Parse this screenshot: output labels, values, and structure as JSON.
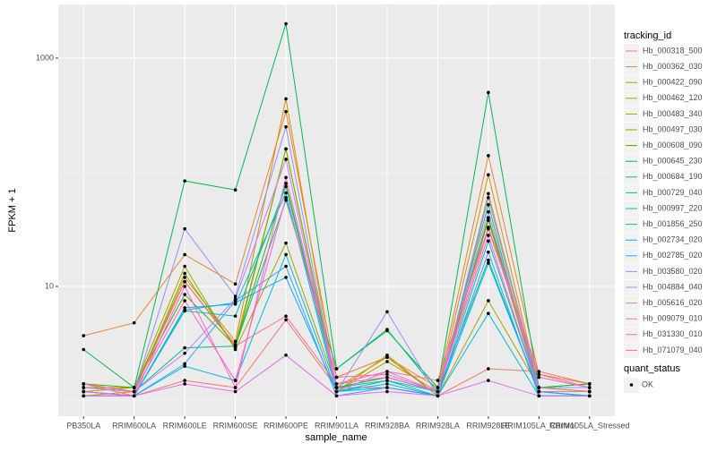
{
  "chart_data": {
    "type": "line",
    "log_y": true,
    "grid": true,
    "x_label": "sample_name",
    "y_label": "FPKM + 1",
    "legend_title": "tracking_id",
    "legend_position": "right",
    "point_legend_title": "quant_status",
    "point_legend_label": "OK",
    "point_color": "#000000",
    "ylim": [
      0.73,
      2950
    ],
    "yticks": [
      10,
      1000
    ],
    "categories": [
      "PB350LA",
      "RRIM600LA",
      "RRIM600LE",
      "RRIM600SE",
      "RRIM600PE",
      "RRIM901LA",
      "RRIM928BA",
      "RRIM928LA",
      "RRIM928LE",
      "RRIM105LA_Control",
      "RRIM105LA_Stressed"
    ],
    "series": [
      {
        "name": "Hb_000318_500",
        "color": "#F8766D",
        "values": [
          1.4,
          1.1,
          1.5,
          1.3,
          5.1,
          1.3,
          1.3,
          1.1,
          1.9,
          1.8,
          1.4
        ]
      },
      {
        "name": "Hb_000362_030",
        "color": "#EA8331",
        "values": [
          3.7,
          4.8,
          19,
          10.5,
          340,
          1.6,
          2.4,
          1.3,
          140,
          1.7,
          1.4
        ]
      },
      {
        "name": "Hb_000422_090",
        "color": "#D89000",
        "values": [
          1.1,
          1.2,
          12,
          3.3,
          440,
          1.2,
          2.2,
          1.2,
          95,
          1.3,
          1.2
        ]
      },
      {
        "name": "Hb_000462_120",
        "color": "#C09B00",
        "values": [
          1.2,
          1.3,
          11,
          3.1,
          160,
          1.2,
          2.5,
          1.1,
          60,
          1.2,
          1.1
        ]
      },
      {
        "name": "Hb_000483_340",
        "color": "#A3A500",
        "values": [
          1.3,
          1.3,
          15,
          2.8,
          24,
          1.3,
          2.4,
          1.1,
          7.5,
          1.3,
          1.2
        ]
      },
      {
        "name": "Hb_000497_030",
        "color": "#7CAE00",
        "values": [
          1.3,
          1.2,
          13,
          2.9,
          160,
          1.3,
          1.6,
          1.2,
          38,
          1.2,
          1.1
        ]
      },
      {
        "name": "Hb_000608_090",
        "color": "#39B600",
        "values": [
          1.4,
          1.3,
          8.5,
          3.0,
          80,
          1.3,
          1.6,
          1.2,
          40,
          1.3,
          1.4
        ]
      },
      {
        "name": "Hb_000645_230",
        "color": "#00BB4E",
        "values": [
          2.8,
          1.3,
          84,
          70,
          2000,
          1.9,
          4.1,
          1.3,
          500,
          1.3,
          1.4
        ]
      },
      {
        "name": "Hb_000684_190",
        "color": "#00BF7D",
        "values": [
          1.3,
          1.2,
          2.9,
          3.0,
          57,
          1.9,
          4.2,
          1.2,
          17,
          1.2,
          1.2
        ]
      },
      {
        "name": "Hb_000729_040",
        "color": "#00C1A3",
        "values": [
          1.2,
          1.1,
          6.1,
          5.5,
          75,
          1.3,
          1.5,
          1.1,
          25,
          1.2,
          1.1
        ]
      },
      {
        "name": "Hb_000997_220",
        "color": "#00BFC4",
        "values": [
          1.2,
          1.1,
          6.5,
          7.0,
          66,
          1.2,
          1.5,
          1.2,
          52,
          1.1,
          1.1
        ]
      },
      {
        "name": "Hb_001856_250",
        "color": "#00BAE0",
        "values": [
          1.1,
          1.1,
          2.0,
          1.5,
          19,
          1.2,
          1.3,
          1.1,
          5.8,
          1.1,
          1.1
        ]
      },
      {
        "name": "Hb_002734_020",
        "color": "#00B0F6",
        "values": [
          1.2,
          1.1,
          6.2,
          7.2,
          12,
          1.2,
          1.4,
          1.1,
          16,
          1.2,
          1.1
        ]
      },
      {
        "name": "Hb_002785_020",
        "color": "#35A2FF",
        "values": [
          1.1,
          1.1,
          2.1,
          7.5,
          15,
          1.1,
          1.3,
          1.1,
          20,
          1.1,
          1.1
        ]
      },
      {
        "name": "Hb_003580_020",
        "color": "#9590FF",
        "values": [
          1.3,
          1.2,
          32,
          8.2,
          250,
          1.2,
          6.0,
          1.1,
          65,
          1.3,
          1.3
        ]
      },
      {
        "name": "Hb_004884_040",
        "color": "#C77CFF",
        "values": [
          1.3,
          1.2,
          2.6,
          7.8,
          130,
          1.2,
          1.8,
          1.2,
          45,
          1.2,
          1.2
        ]
      },
      {
        "name": "Hb_005616_020",
        "color": "#E76BF3",
        "values": [
          1.1,
          1.1,
          1.4,
          1.2,
          2.5,
          1.1,
          1.2,
          1.1,
          1.5,
          1.1,
          1.1
        ]
      },
      {
        "name": "Hb_009079_010",
        "color": "#FA62DB",
        "values": [
          1.2,
          1.1,
          10,
          1.3,
          90,
          1.4,
          1.6,
          1.2,
          28,
          1.2,
          1.2
        ]
      },
      {
        "name": "Hb_031330_010",
        "color": "#FF62BC",
        "values": [
          1.4,
          1.2,
          7.5,
          1.5,
          60,
          1.6,
          1.7,
          1.2,
          32,
          1.6,
          1.3
        ]
      },
      {
        "name": "Hb_071079_040",
        "color": "#FF6C91",
        "values": [
          1.4,
          1.2,
          11,
          3.0,
          5.5,
          1.4,
          1.8,
          1.5,
          33,
          1.7,
          1.3
        ]
      }
    ]
  }
}
